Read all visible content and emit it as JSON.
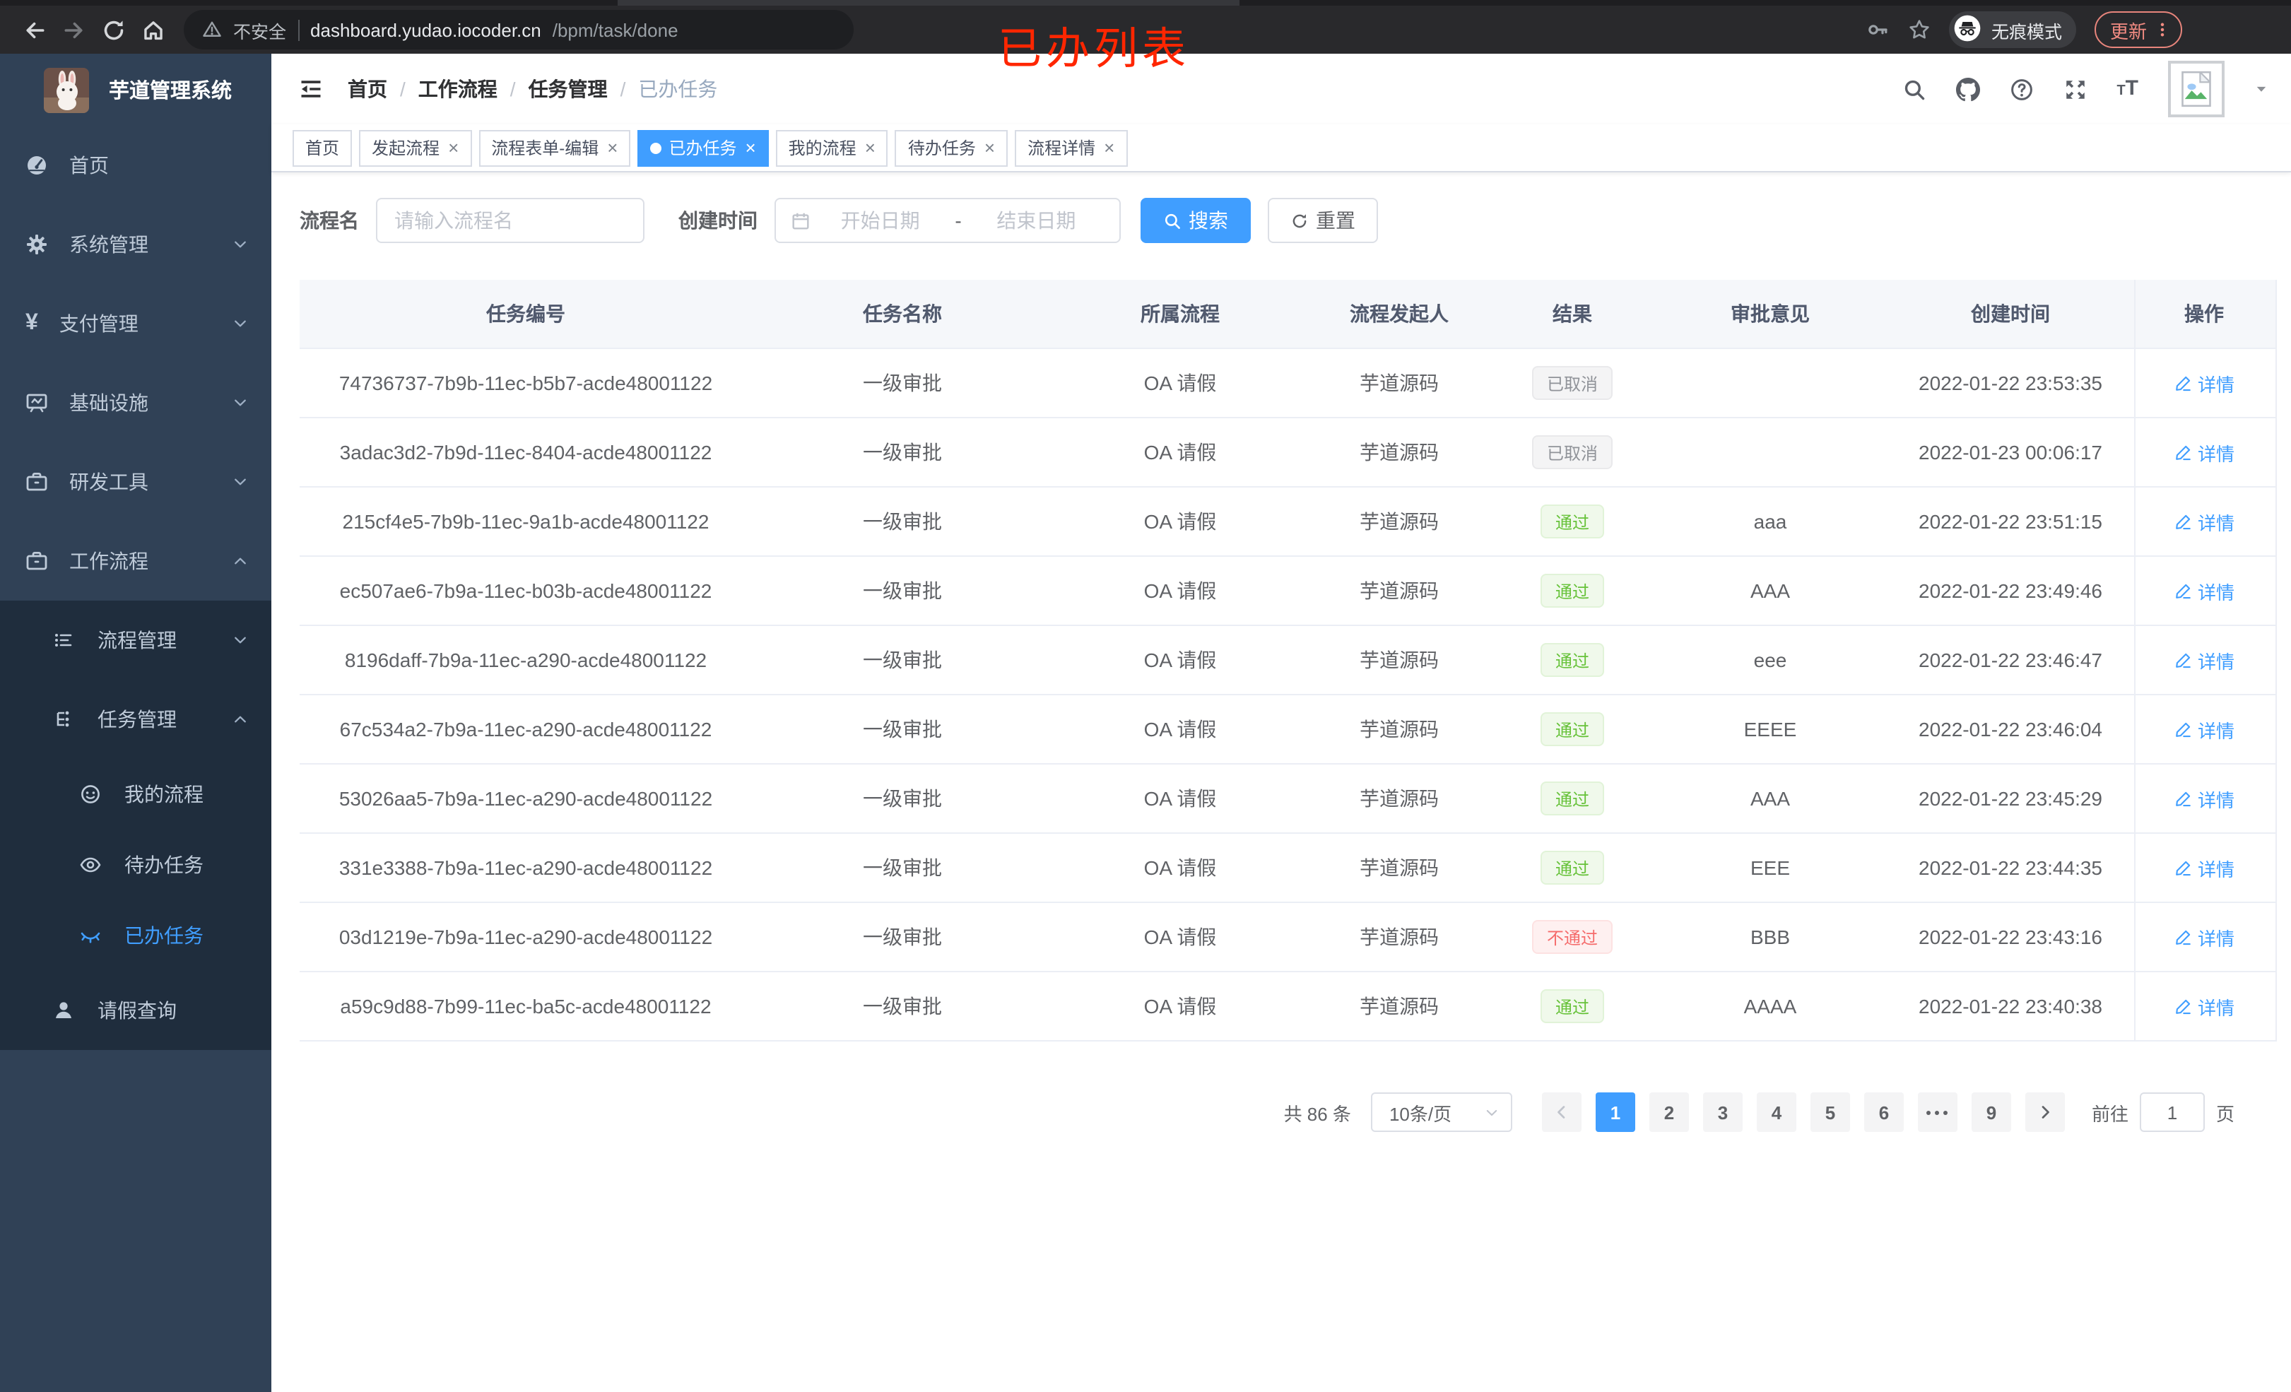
{
  "browser": {
    "nav_icons": [
      "back-icon",
      "forward-icon",
      "reload-icon",
      "home-icon"
    ],
    "security_label": "不安全",
    "url_host": "dashboard.yudao.iocoder.cn",
    "url_path": "/bpm/task/done",
    "incognito_label": "无痕模式",
    "update_label": "更新"
  },
  "annotation": {
    "text": "已办列表"
  },
  "sidebar": {
    "app_title": "芋道管理系统",
    "menu": [
      {
        "key": "home",
        "label": "首页",
        "icon": "dashboard-icon",
        "level": 1
      },
      {
        "key": "system",
        "label": "系统管理",
        "icon": "gear-icon",
        "level": 1,
        "chevron": "down"
      },
      {
        "key": "payment",
        "label": "支付管理",
        "icon": "yen-icon",
        "level": 1,
        "chevron": "down"
      },
      {
        "key": "infrastructure",
        "label": "基础设施",
        "icon": "monitor-icon",
        "level": 1,
        "chevron": "down"
      },
      {
        "key": "dev-tools",
        "label": "研发工具",
        "icon": "toolbox-icon",
        "level": 1,
        "chevron": "down"
      },
      {
        "key": "workflow",
        "label": "工作流程",
        "icon": "briefcase-icon",
        "level": 1,
        "chevron": "up"
      }
    ],
    "submenu": [
      {
        "key": "process-mgmt",
        "label": "流程管理",
        "icon": "list-icon",
        "level": 2,
        "chevron": "down"
      },
      {
        "key": "task-mgmt",
        "label": "任务管理",
        "icon": "tree-icon",
        "level": 2,
        "chevron": "up"
      },
      {
        "key": "my-process",
        "label": "我的流程",
        "icon": "face-icon",
        "level": 3
      },
      {
        "key": "todo-task",
        "label": "待办任务",
        "icon": "eye-icon",
        "level": 3
      },
      {
        "key": "done-task",
        "label": "已办任务",
        "icon": "eye-closed-icon",
        "level": 3,
        "active": true
      },
      {
        "key": "leave-query",
        "label": "请假查询",
        "icon": "user-icon",
        "level": 2
      }
    ]
  },
  "navbar": {
    "breadcrumb": [
      "首页",
      "工作流程",
      "任务管理",
      "已办任务"
    ],
    "separator": "/",
    "icons": [
      "search-icon",
      "github-icon",
      "question-icon",
      "fullscreen-icon",
      "font-size-icon",
      "broken-image-icon",
      "caret-down-icon"
    ]
  },
  "tabs": [
    {
      "label": "首页"
    },
    {
      "label": "发起流程",
      "closable": true
    },
    {
      "label": "流程表单-编辑",
      "closable": true
    },
    {
      "label": "已办任务",
      "closable": true,
      "active": true
    },
    {
      "label": "我的流程",
      "closable": true
    },
    {
      "label": "待办任务",
      "closable": true
    },
    {
      "label": "流程详情",
      "closable": true
    }
  ],
  "filter": {
    "process_name_label": "流程名",
    "process_name_placeholder": "请输入流程名",
    "create_time_label": "创建时间",
    "start_placeholder": "开始日期",
    "range_separator": "-",
    "end_placeholder": "结束日期",
    "search_label": "搜索",
    "reset_label": "重置"
  },
  "table": {
    "columns": [
      "任务编号",
      "任务名称",
      "所属流程",
      "流程发起人",
      "结果",
      "审批意见",
      "创建时间",
      "操作"
    ],
    "action_label": "详情",
    "rows": [
      {
        "id": "74736737-7b9b-11ec-b5b7-acde48001122",
        "task": "一级审批",
        "process": "OA 请假",
        "starter": "芋道源码",
        "result": {
          "label": "已取消",
          "type": "info"
        },
        "comment": "",
        "time": "2022-01-22 23:53:35"
      },
      {
        "id": "3adac3d2-7b9d-11ec-8404-acde48001122",
        "task": "一级审批",
        "process": "OA 请假",
        "starter": "芋道源码",
        "result": {
          "label": "已取消",
          "type": "info"
        },
        "comment": "",
        "time": "2022-01-23 00:06:17"
      },
      {
        "id": "215cf4e5-7b9b-11ec-9a1b-acde48001122",
        "task": "一级审批",
        "process": "OA 请假",
        "starter": "芋道源码",
        "result": {
          "label": "通过",
          "type": "success"
        },
        "comment": "aaa",
        "time": "2022-01-22 23:51:15"
      },
      {
        "id": "ec507ae6-7b9a-11ec-b03b-acde48001122",
        "task": "一级审批",
        "process": "OA 请假",
        "starter": "芋道源码",
        "result": {
          "label": "通过",
          "type": "success"
        },
        "comment": "AAA",
        "time": "2022-01-22 23:49:46"
      },
      {
        "id": "8196daff-7b9a-11ec-a290-acde48001122",
        "task": "一级审批",
        "process": "OA 请假",
        "starter": "芋道源码",
        "result": {
          "label": "通过",
          "type": "success"
        },
        "comment": "eee",
        "time": "2022-01-22 23:46:47"
      },
      {
        "id": "67c534a2-7b9a-11ec-a290-acde48001122",
        "task": "一级审批",
        "process": "OA 请假",
        "starter": "芋道源码",
        "result": {
          "label": "通过",
          "type": "success"
        },
        "comment": "EEEE",
        "time": "2022-01-22 23:46:04"
      },
      {
        "id": "53026aa5-7b9a-11ec-a290-acde48001122",
        "task": "一级审批",
        "process": "OA 请假",
        "starter": "芋道源码",
        "result": {
          "label": "通过",
          "type": "success"
        },
        "comment": "AAA",
        "time": "2022-01-22 23:45:29"
      },
      {
        "id": "331e3388-7b9a-11ec-a290-acde48001122",
        "task": "一级审批",
        "process": "OA 请假",
        "starter": "芋道源码",
        "result": {
          "label": "通过",
          "type": "success"
        },
        "comment": "EEE",
        "time": "2022-01-22 23:44:35"
      },
      {
        "id": "03d1219e-7b9a-11ec-a290-acde48001122",
        "task": "一级审批",
        "process": "OA 请假",
        "starter": "芋道源码",
        "result": {
          "label": "不通过",
          "type": "danger"
        },
        "comment": "BBB",
        "time": "2022-01-22 23:43:16"
      },
      {
        "id": "a59c9d88-7b99-11ec-ba5c-acde48001122",
        "task": "一级审批",
        "process": "OA 请假",
        "starter": "芋道源码",
        "result": {
          "label": "通过",
          "type": "success"
        },
        "comment": "AAAA",
        "time": "2022-01-22 23:40:38"
      }
    ]
  },
  "pagination": {
    "total_label": "共 86 条",
    "page_size_label": "10条/页",
    "pages": [
      "1",
      "2",
      "3",
      "4",
      "5",
      "6",
      "more",
      "9"
    ],
    "active_page": "1",
    "jump_prefix": "前往",
    "jump_value": "1",
    "jump_suffix": "页"
  },
  "colors": {
    "accent": "#409eff",
    "success": "#67c23a",
    "danger": "#f56c6c",
    "info": "#909399",
    "sidebar_bg": "#304156",
    "submenu_bg": "#1f2d3d",
    "annotation_red": "#ff2600"
  }
}
